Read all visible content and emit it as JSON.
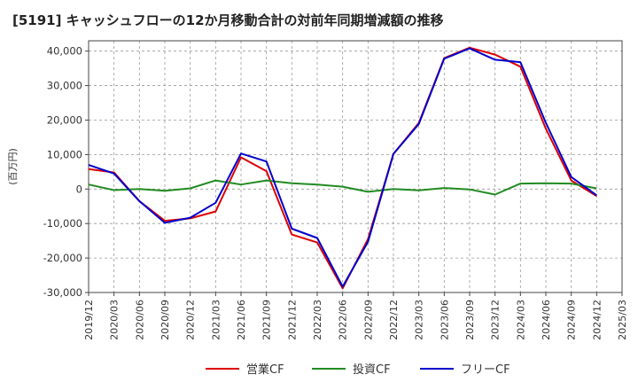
{
  "chart_data": {
    "type": "line",
    "title": "[5191]  キャッシュフローの12か月移動合計の対前年同期増減額の推移",
    "ylabel": "(百万円)",
    "xlabel": "",
    "ylim": [
      -30000,
      43000
    ],
    "yticks": [
      -30000,
      -20000,
      -10000,
      0,
      10000,
      20000,
      30000,
      40000
    ],
    "ytick_labels": [
      "-30,000",
      "-20,000",
      "-10,000",
      "0",
      "10,000",
      "20,000",
      "30,000",
      "40,000"
    ],
    "x_tick_labels": [
      "2019/12",
      "2020/03",
      "2020/06",
      "2020/09",
      "2020/12",
      "2021/03",
      "2021/06",
      "2021/09",
      "2021/12",
      "2022/03",
      "2022/06",
      "2022/09",
      "2022/12",
      "2023/03",
      "2023/06",
      "2023/09",
      "2023/12",
      "2024/03",
      "2024/06",
      "2024/09",
      "2024/12",
      "2025/03"
    ],
    "categories": [
      "2019/12",
      "2020/03",
      "2020/06",
      "2020/09",
      "2020/12",
      "2021/03",
      "2021/06",
      "2021/09",
      "2021/12",
      "2022/03",
      "2022/06",
      "2022/09",
      "2022/12",
      "2023/03",
      "2023/06",
      "2023/09",
      "2023/12",
      "2024/03",
      "2024/06",
      "2024/09",
      "2024/12"
    ],
    "grid": true,
    "legend_position": "bottom",
    "series": [
      {
        "name": "営業CF",
        "color": "#dd0000",
        "values": [
          5800,
          4800,
          -3500,
          -9200,
          -8500,
          -6500,
          9200,
          5200,
          -13200,
          -15500,
          -28800,
          -14500,
          10200,
          19200,
          38000,
          41000,
          39000,
          35500,
          17500,
          2500,
          -2000
        ]
      },
      {
        "name": "投資CF",
        "color": "#228b22",
        "values": [
          1300,
          -300,
          0,
          -500,
          200,
          2500,
          1300,
          2500,
          1700,
          1300,
          700,
          -800,
          0,
          -400,
          300,
          -100,
          -1600,
          1600,
          1700,
          1600,
          200
        ]
      },
      {
        "name": "フリーCF",
        "color": "#0000cc",
        "values": [
          7000,
          4500,
          -3500,
          -9800,
          -8300,
          -4000,
          10300,
          8000,
          -11500,
          -14200,
          -28300,
          -15300,
          10200,
          18900,
          37800,
          40800,
          37500,
          36800,
          19200,
          3500,
          -1800
        ]
      }
    ]
  }
}
